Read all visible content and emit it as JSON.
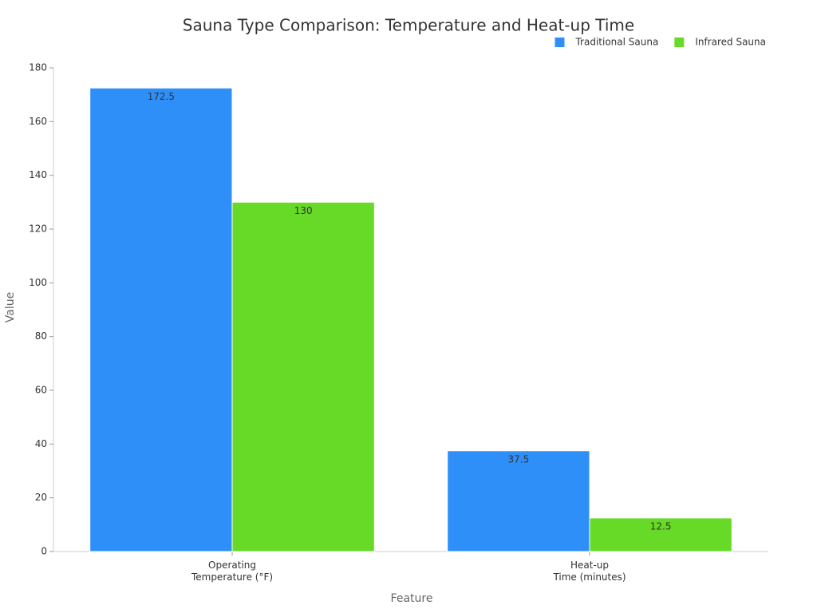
{
  "chart_data": {
    "type": "bar",
    "title": "Sauna Type Comparison: Temperature and Heat-up Time",
    "x_label": "Feature",
    "y_label": "Value",
    "categories": [
      "Operating\nTemperature (°F)",
      "Heat-up\nTime (minutes)"
    ],
    "series": [
      {
        "name": "Traditional Sauna",
        "color": "#2e8ff8",
        "values": [
          172.5,
          37.5
        ]
      },
      {
        "name": "Infrared Sauna",
        "color": "#66da26",
        "values": [
          130,
          12.5
        ]
      }
    ],
    "ylim": [
      0,
      180
    ],
    "yticks": [
      0,
      20,
      40,
      60,
      80,
      100,
      120,
      140,
      160,
      180
    ],
    "grid": false,
    "legend": "top-right"
  }
}
